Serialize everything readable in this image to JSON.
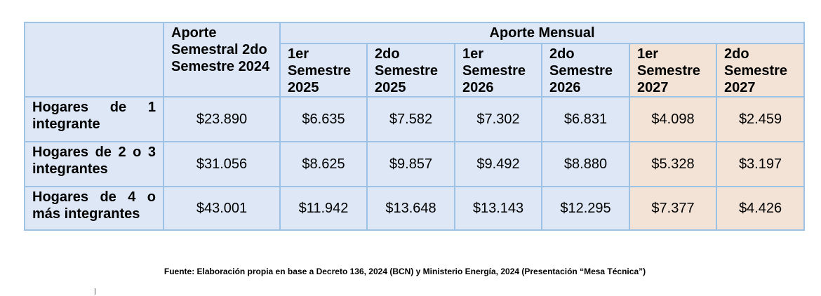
{
  "table": {
    "corner": "",
    "col_semestral_header": "Aporte Semestral 2do Semestre 2024",
    "group_header": "Aporte Mensual",
    "sub_headers": [
      "1er Semestre 2025",
      "2do Semestre 2025",
      "1er Semestre 2026",
      "2do Semestre 2026",
      "1er Semestre 2027",
      "2do Semestre 2027"
    ],
    "rows": [
      {
        "label": "Hogares de 1 integrante",
        "values": [
          "$23.890",
          "$6.635",
          "$7.582",
          "$7.302",
          "$6.831",
          "$4.098",
          "$2.459"
        ]
      },
      {
        "label": "Hogares de 2 o 3 integrantes",
        "values": [
          "$31.056",
          "$8.625",
          "$9.857",
          "$9.492",
          "$8.880",
          "$5.328",
          "$3.197"
        ]
      },
      {
        "label": "Hogares de 4 o más integrantes",
        "values": [
          "$43.001",
          "$11.942",
          "$13.648",
          "$13.143",
          "$12.295",
          "$7.377",
          "$4.426"
        ]
      }
    ],
    "colors": {
      "border": "#9cc3e6",
      "cell_blue": "#dde7f5",
      "cell_peach": "#f3e3d6"
    }
  },
  "source_note": "Fuente: Elaboración propia en base a Decreto 136, 2024 (BCN) y Ministerio Energía, 2024 (Presentación “Mesa Técnica”)"
}
